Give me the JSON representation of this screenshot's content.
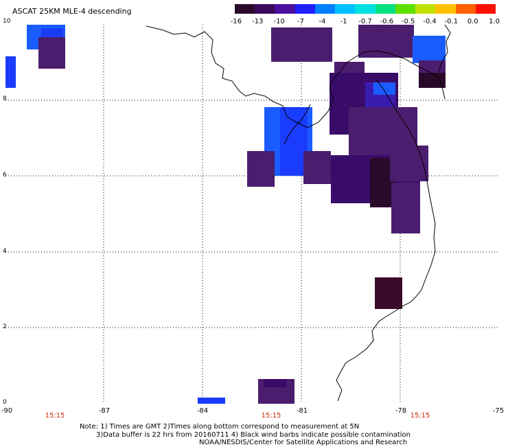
{
  "title": "ASCAT 25KM MLE-4 descending",
  "colorbar": {
    "labels": [
      "-16",
      "-13",
      "-10",
      "-7",
      "-4",
      "-1",
      "-0.7",
      "-0.6",
      "-0.5",
      "-0.4",
      "-0.1",
      "0.0",
      "1.0"
    ],
    "colors": [
      "#2a0a2a",
      "#3c0a5a",
      "#4a10a0",
      "#2020ff",
      "#0080ff",
      "#00c0ff",
      "#00e0e0",
      "#00e080",
      "#60e000",
      "#c0e000",
      "#ffc000",
      "#ff6000",
      "#ff1000"
    ]
  },
  "axes": {
    "x_ticks": [
      "-90",
      "-87",
      "-84",
      "-81",
      "-78",
      "-75"
    ],
    "y_ticks": [
      "10",
      "8",
      "6",
      "4",
      "2",
      "0"
    ],
    "time_labels": [
      "15:15",
      "15:15",
      "15:15"
    ]
  },
  "notes": [
    "Note: 1) Times are GMT 2)Times along bottom correspond to measurement at 5N",
    "3)Data buffer is 22 hrs from 20160711 4) Black wind barbs indicate possible contamination",
    "NOAA/NESDIS/Center for Satellite Applications and Research"
  ],
  "colors": {
    "dark_purple": "#4b1d6e",
    "mid_purple": "#3a0c6a",
    "very_dark": "#2a0a2a",
    "blue": "#1a5cff",
    "royal_blue": "#1a3cff",
    "violet_blue": "#3a1cb0"
  }
}
